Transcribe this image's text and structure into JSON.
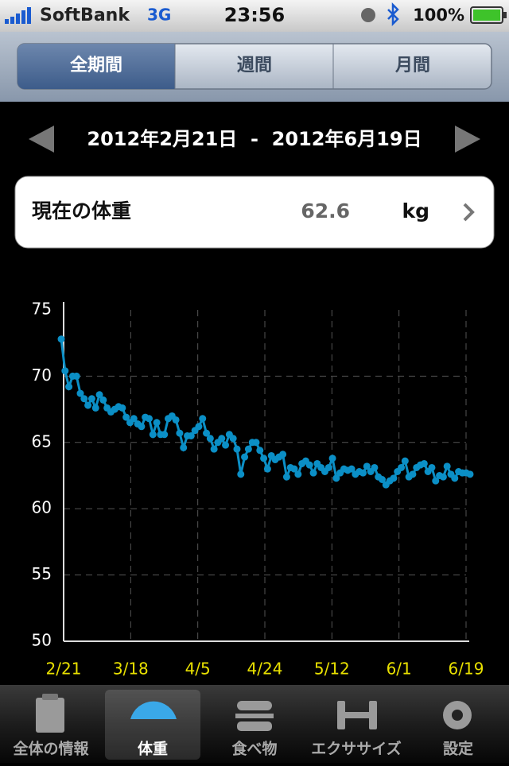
{
  "status_bar": {
    "carrier": "SoftBank",
    "network": "3G",
    "time": "23:56",
    "battery": "100%"
  },
  "segments": [
    "全期間",
    "週間",
    "月間"
  ],
  "date_range": "2012年2月21日  -  2012年6月19日",
  "current_weight": {
    "label": "現在の体重",
    "value": "62.6",
    "unit": "kg"
  },
  "chart_data": {
    "type": "line",
    "x_labels": [
      "2/21",
      "3/18",
      "4/5",
      "4/24",
      "5/12",
      "6/1",
      "6/19"
    ],
    "values": [
      72.8,
      70.4,
      69.2,
      70.0,
      70.0,
      68.7,
      68.3,
      67.8,
      68.3,
      67.6,
      68.6,
      68.2,
      67.6,
      67.3,
      67.5,
      67.7,
      67.6,
      66.9,
      66.5,
      66.8,
      66.4,
      66.2,
      66.9,
      66.8,
      65.6,
      66.5,
      65.6,
      65.6,
      66.8,
      67.0,
      66.7,
      65.7,
      64.6,
      65.5,
      65.5,
      65.9,
      66.2,
      66.8,
      65.7,
      65.3,
      64.5,
      65.0,
      65.3,
      64.8,
      65.6,
      65.3,
      64.5,
      62.6,
      63.9,
      64.5,
      65.0,
      65.0,
      64.4,
      63.8,
      63.0,
      64.0,
      63.7,
      63.9,
      64.1,
      62.4,
      63.1,
      63.0,
      62.6,
      63.4,
      63.6,
      63.3,
      62.7,
      63.4,
      63.1,
      62.8,
      63.1,
      63.8,
      62.3,
      62.7,
      63.0,
      62.9,
      63.0,
      62.6,
      62.8,
      62.7,
      63.2,
      62.8,
      63.1,
      62.4,
      62.2,
      61.8,
      62.1,
      62.3,
      62.8,
      63.1,
      63.6,
      62.4,
      62.6,
      63.1,
      63.3,
      63.4,
      62.8,
      63.1,
      62.1,
      62.5,
      62.4,
      63.2,
      62.6,
      62.3,
      62.8,
      62.7,
      62.7,
      62.6
    ],
    "color": "#0b8fc6",
    "ylim": [
      50,
      75
    ],
    "yticks": [
      50,
      55,
      60,
      65,
      70,
      75
    ],
    "grid": true
  },
  "tab_bar": [
    "全体の情報",
    "体重",
    "食べ物",
    "エクササイズ",
    "設定"
  ]
}
